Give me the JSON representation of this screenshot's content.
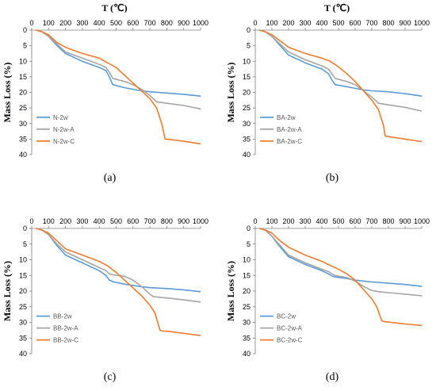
{
  "chart_data": [
    {
      "type": "line",
      "panel_label": "(a)",
      "xlabel": "T (℃)",
      "ylabel": "Mass Loss (%)",
      "xlim": [
        0,
        1000
      ],
      "ylim": [
        0,
        40
      ],
      "y_inverted": true,
      "x_axis_position": "top",
      "x_ticks": [
        0,
        100,
        200,
        300,
        400,
        500,
        600,
        700,
        800,
        900,
        1000
      ],
      "y_ticks": [
        0,
        5,
        10,
        15,
        20,
        25,
        30,
        35,
        40
      ],
      "legend_position": "lower-left",
      "grid": false,
      "series": [
        {
          "name": "N-2w",
          "color": "#5b9bd5",
          "x": [
            25,
            60,
            100,
            150,
            200,
            300,
            400,
            440,
            460,
            480,
            550,
            600,
            650,
            700,
            750,
            800,
            900,
            1000
          ],
          "y": [
            0,
            0.5,
            2,
            5,
            7.5,
            10,
            12,
            13,
            15,
            17.5,
            18.5,
            19,
            19.5,
            19.8,
            20,
            20.2,
            20.6,
            21.2
          ]
        },
        {
          "name": "N-2w-A",
          "color": "#a5a5a5",
          "x": [
            25,
            60,
            100,
            150,
            200,
            300,
            400,
            440,
            460,
            480,
            550,
            600,
            650,
            700,
            740,
            800,
            900,
            1000
          ],
          "y": [
            0,
            0.5,
            2,
            4.5,
            7,
            9,
            11,
            12,
            13.5,
            15.5,
            16.5,
            17.5,
            19,
            21,
            23,
            23.5,
            24.2,
            25.3
          ]
        },
        {
          "name": "N-2w-C",
          "color": "#ed7d31",
          "x": [
            25,
            60,
            100,
            150,
            200,
            300,
            400,
            450,
            500,
            550,
            600,
            650,
            700,
            740,
            770,
            790,
            800,
            900,
            1000
          ],
          "y": [
            0,
            0.5,
            1.5,
            4,
            5.5,
            7.5,
            9,
            10.5,
            12,
            14.5,
            17,
            19.5,
            22,
            25,
            30,
            35,
            35,
            35.7,
            36.5
          ]
        }
      ]
    },
    {
      "type": "line",
      "panel_label": "(b)",
      "xlabel": "T (℃)",
      "ylabel": "Mass Loss (%)",
      "xlim": [
        0,
        1000
      ],
      "ylim": [
        0,
        40
      ],
      "y_inverted": true,
      "x_axis_position": "top",
      "x_ticks": [
        0,
        100,
        200,
        300,
        400,
        500,
        600,
        700,
        800,
        900,
        1000
      ],
      "y_ticks": [
        0,
        5,
        10,
        15,
        20,
        25,
        30,
        35,
        40
      ],
      "legend_position": "lower-left",
      "grid": false,
      "series": [
        {
          "name": "BA-2w",
          "color": "#5b9bd5",
          "x": [
            25,
            60,
            100,
            150,
            200,
            300,
            400,
            440,
            460,
            480,
            550,
            600,
            650,
            700,
            800,
            900,
            1000
          ],
          "y": [
            0,
            0.5,
            2,
            5,
            8,
            10.5,
            12.5,
            14,
            16,
            17.5,
            18.2,
            18.7,
            19.2,
            19.5,
            19.8,
            20.4,
            21.2
          ]
        },
        {
          "name": "BA-2w-A",
          "color": "#a5a5a5",
          "x": [
            25,
            60,
            100,
            150,
            200,
            300,
            400,
            440,
            460,
            480,
            550,
            600,
            650,
            700,
            740,
            800,
            900,
            1000
          ],
          "y": [
            0,
            0.5,
            2,
            4.5,
            7,
            9.5,
            11.5,
            12.5,
            14,
            15.5,
            16.5,
            17.5,
            19.5,
            21.5,
            23.5,
            24,
            24.8,
            26
          ]
        },
        {
          "name": "BA-2w-C",
          "color": "#ed7d31",
          "x": [
            25,
            60,
            100,
            150,
            200,
            300,
            400,
            450,
            500,
            550,
            600,
            650,
            700,
            740,
            770,
            780,
            800,
            900,
            1000
          ],
          "y": [
            0,
            0.5,
            1.5,
            3.5,
            5.5,
            7.5,
            9,
            10,
            11.8,
            14,
            16.5,
            19.5,
            22.5,
            25.5,
            30.5,
            34,
            34.2,
            35,
            35.8
          ]
        }
      ]
    },
    {
      "type": "line",
      "panel_label": "(c)",
      "xlabel": "",
      "ylabel": "Mass Loss (%)",
      "xlim": [
        0,
        1000
      ],
      "ylim": [
        0,
        40
      ],
      "y_inverted": true,
      "x_axis_position": "top",
      "x_ticks": [
        0,
        100,
        200,
        300,
        400,
        500,
        600,
        700,
        800,
        900,
        1000
      ],
      "y_ticks": [
        0,
        5,
        10,
        15,
        20,
        25,
        30,
        35,
        40
      ],
      "legend_position": "lower-left",
      "grid": false,
      "series": [
        {
          "name": "BB-2w",
          "color": "#5b9bd5",
          "x": [
            25,
            60,
            100,
            150,
            200,
            300,
            400,
            440,
            460,
            480,
            550,
            600,
            650,
            700,
            800,
            900,
            1000
          ],
          "y": [
            0,
            0.5,
            2,
            5.5,
            8.5,
            11,
            13.5,
            15,
            16.5,
            17,
            17.8,
            18.2,
            18.6,
            18.9,
            19.2,
            19.6,
            20.2
          ]
        },
        {
          "name": "BB-2w-A",
          "color": "#a5a5a5",
          "x": [
            25,
            60,
            100,
            150,
            200,
            300,
            400,
            440,
            460,
            480,
            550,
            600,
            650,
            700,
            720,
            800,
            900,
            1000
          ],
          "y": [
            0,
            0.5,
            2,
            5,
            7.5,
            10,
            12.5,
            13.5,
            14.5,
            14.8,
            15.3,
            16.5,
            18.5,
            21,
            21.8,
            22.2,
            22.8,
            23.5
          ]
        },
        {
          "name": "BB-2w-C",
          "color": "#ed7d31",
          "x": [
            25,
            60,
            100,
            150,
            200,
            300,
            400,
            450,
            500,
            550,
            600,
            650,
            700,
            730,
            760,
            780,
            800,
            900,
            1000
          ],
          "y": [
            0,
            0.5,
            1.5,
            4,
            6.5,
            8.5,
            10.5,
            12,
            14,
            16.5,
            19,
            21.5,
            24.5,
            27,
            32.5,
            32.8,
            32.8,
            33.5,
            34.2
          ]
        }
      ]
    },
    {
      "type": "line",
      "panel_label": "(d)",
      "xlabel": "",
      "ylabel": "Mass Loss (%)",
      "xlim": [
        0,
        1000
      ],
      "ylim": [
        0,
        40
      ],
      "y_inverted": true,
      "x_axis_position": "top",
      "x_ticks": [
        0,
        100,
        200,
        300,
        400,
        500,
        600,
        700,
        800,
        900,
        1000
      ],
      "y_ticks": [
        0,
        5,
        10,
        15,
        20,
        25,
        30,
        35,
        40
      ],
      "legend_position": "lower-left",
      "grid": false,
      "series": [
        {
          "name": "BC-2w",
          "color": "#5b9bd5",
          "x": [
            25,
            60,
            100,
            150,
            200,
            300,
            400,
            440,
            460,
            480,
            550,
            600,
            650,
            700,
            800,
            900,
            1000
          ],
          "y": [
            0,
            0.5,
            2.5,
            6,
            9,
            11.5,
            13.5,
            14.5,
            15.2,
            15.5,
            16,
            16.5,
            16.8,
            17.1,
            17.5,
            17.9,
            18.5
          ]
        },
        {
          "name": "BC-2w-A",
          "color": "#a5a5a5",
          "x": [
            25,
            60,
            100,
            150,
            200,
            300,
            400,
            440,
            460,
            480,
            550,
            600,
            650,
            700,
            740,
            800,
            900,
            1000
          ],
          "y": [
            0,
            0.5,
            2.5,
            5.5,
            8.5,
            11,
            13,
            13.8,
            14.5,
            15,
            15.7,
            16.8,
            18.5,
            19.8,
            20.2,
            20.5,
            21,
            21.5
          ]
        },
        {
          "name": "BC-2w-C",
          "color": "#ed7d31",
          "x": [
            25,
            60,
            100,
            150,
            200,
            300,
            400,
            450,
            500,
            550,
            600,
            650,
            700,
            730,
            760,
            780,
            800,
            900,
            1000
          ],
          "y": [
            0,
            0.5,
            1.5,
            4,
            6,
            8.5,
            10.5,
            11.8,
            13,
            14.5,
            16.5,
            19.5,
            22.5,
            25,
            29.5,
            29.8,
            29.9,
            30.5,
            31
          ]
        }
      ]
    }
  ]
}
